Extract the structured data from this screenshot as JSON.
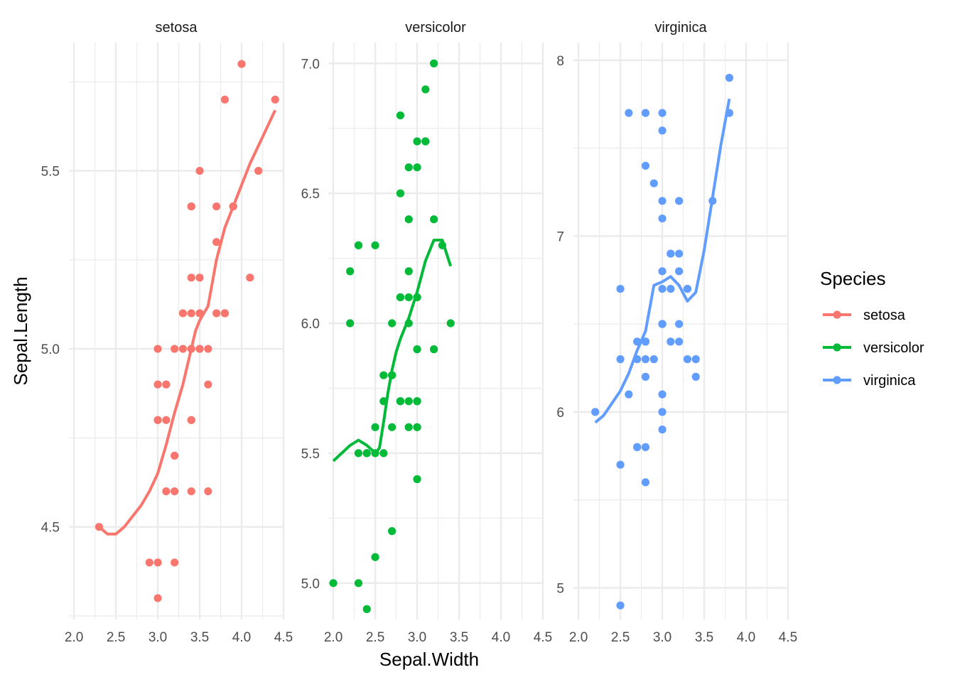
{
  "chart_data": {
    "type": "scatter",
    "xlabel": "Sepal.Width",
    "ylabel": "Sepal.Length",
    "legend": {
      "title": "Species",
      "position": "right"
    },
    "grid": true,
    "facets": [
      {
        "name": "setosa",
        "color": "#F8766D",
        "xlim": [
          1.94,
          4.5
        ],
        "ylim": [
          4.24,
          5.86
        ],
        "x_ticks": [
          "2.0",
          "2.5",
          "3.0",
          "3.5",
          "4.0",
          "4.5"
        ],
        "y_ticks": [
          "4.5",
          "5.0",
          "5.5"
        ],
        "points": [
          [
            3.5,
            5.1
          ],
          [
            3.0,
            4.9
          ],
          [
            3.2,
            4.7
          ],
          [
            3.1,
            4.6
          ],
          [
            3.6,
            5.0
          ],
          [
            3.9,
            5.4
          ],
          [
            3.4,
            4.6
          ],
          [
            3.4,
            5.0
          ],
          [
            2.9,
            4.4
          ],
          [
            3.1,
            4.9
          ],
          [
            3.7,
            5.4
          ],
          [
            3.4,
            4.8
          ],
          [
            3.0,
            4.8
          ],
          [
            3.0,
            4.3
          ],
          [
            4.0,
            5.8
          ],
          [
            4.4,
            5.7
          ],
          [
            3.9,
            5.4
          ],
          [
            3.5,
            5.1
          ],
          [
            3.8,
            5.7
          ],
          [
            3.8,
            5.1
          ],
          [
            3.4,
            5.4
          ],
          [
            3.7,
            5.1
          ],
          [
            3.6,
            4.6
          ],
          [
            3.3,
            5.1
          ],
          [
            3.4,
            4.8
          ],
          [
            3.0,
            5.0
          ],
          [
            3.4,
            5.0
          ],
          [
            3.5,
            5.2
          ],
          [
            3.4,
            5.2
          ],
          [
            3.2,
            4.7
          ],
          [
            3.1,
            4.8
          ],
          [
            3.4,
            5.4
          ],
          [
            4.1,
            5.2
          ],
          [
            4.2,
            5.5
          ],
          [
            3.1,
            4.9
          ],
          [
            3.2,
            5.0
          ],
          [
            3.5,
            5.5
          ],
          [
            3.6,
            4.9
          ],
          [
            3.0,
            4.4
          ],
          [
            3.4,
            5.1
          ],
          [
            3.5,
            5.0
          ],
          [
            2.3,
            4.5
          ],
          [
            3.2,
            4.4
          ],
          [
            3.5,
            5.0
          ],
          [
            3.8,
            5.1
          ],
          [
            3.0,
            4.8
          ],
          [
            3.8,
            5.1
          ],
          [
            3.2,
            4.6
          ],
          [
            3.7,
            5.3
          ],
          [
            3.3,
            5.0
          ]
        ],
        "smooth": [
          [
            2.3,
            4.5
          ],
          [
            2.4,
            4.48
          ],
          [
            2.5,
            4.48
          ],
          [
            2.6,
            4.5
          ],
          [
            2.7,
            4.53
          ],
          [
            2.8,
            4.56
          ],
          [
            2.9,
            4.6
          ],
          [
            3.0,
            4.65
          ],
          [
            3.1,
            4.73
          ],
          [
            3.2,
            4.82
          ],
          [
            3.3,
            4.9
          ],
          [
            3.4,
            5.0
          ],
          [
            3.45,
            5.05
          ],
          [
            3.5,
            5.08
          ],
          [
            3.6,
            5.12
          ],
          [
            3.7,
            5.25
          ],
          [
            3.8,
            5.34
          ],
          [
            3.9,
            5.4
          ],
          [
            4.0,
            5.46
          ],
          [
            4.1,
            5.52
          ],
          [
            4.2,
            5.57
          ],
          [
            4.3,
            5.62
          ],
          [
            4.4,
            5.67
          ]
        ]
      },
      {
        "name": "versicolor",
        "color": "#00BA38",
        "xlim": [
          1.94,
          4.5
        ],
        "ylim": [
          4.86,
          7.08
        ],
        "x_ticks": [
          "2.0",
          "2.5",
          "3.0",
          "3.5",
          "4.0",
          "4.5"
        ],
        "y_ticks": [
          "5.0",
          "5.5",
          "6.0",
          "6.5",
          "7.0"
        ],
        "points": [
          [
            3.2,
            7.0
          ],
          [
            3.2,
            6.4
          ],
          [
            3.1,
            6.9
          ],
          [
            2.3,
            5.5
          ],
          [
            2.8,
            6.5
          ],
          [
            2.8,
            5.7
          ],
          [
            3.3,
            6.3
          ],
          [
            2.4,
            4.9
          ],
          [
            2.9,
            6.6
          ],
          [
            2.7,
            5.2
          ],
          [
            2.0,
            5.0
          ],
          [
            3.0,
            5.9
          ],
          [
            2.2,
            6.0
          ],
          [
            2.9,
            6.1
          ],
          [
            2.9,
            5.6
          ],
          [
            3.1,
            6.7
          ],
          [
            3.0,
            5.6
          ],
          [
            2.7,
            5.8
          ],
          [
            2.2,
            6.2
          ],
          [
            2.5,
            5.6
          ],
          [
            3.2,
            5.9
          ],
          [
            2.8,
            6.1
          ],
          [
            2.5,
            6.3
          ],
          [
            2.8,
            6.1
          ],
          [
            2.9,
            6.4
          ],
          [
            3.0,
            6.6
          ],
          [
            2.8,
            6.8
          ],
          [
            3.0,
            6.7
          ],
          [
            2.9,
            6.0
          ],
          [
            2.6,
            5.7
          ],
          [
            2.4,
            5.5
          ],
          [
            2.4,
            5.5
          ],
          [
            2.7,
            5.8
          ],
          [
            2.7,
            6.0
          ],
          [
            3.0,
            5.4
          ],
          [
            3.4,
            6.0
          ],
          [
            3.1,
            6.7
          ],
          [
            2.3,
            6.3
          ],
          [
            3.0,
            5.6
          ],
          [
            2.5,
            5.5
          ],
          [
            2.6,
            5.5
          ],
          [
            3.0,
            6.1
          ],
          [
            2.6,
            5.8
          ],
          [
            2.3,
            5.0
          ],
          [
            2.7,
            5.6
          ],
          [
            3.0,
            5.7
          ],
          [
            2.9,
            5.7
          ],
          [
            2.9,
            6.2
          ],
          [
            2.5,
            5.1
          ],
          [
            2.8,
            5.7
          ],
          [
            2.3,
            6.3
          ],
          [
            3.0,
            6.1
          ],
          [
            3.0,
            5.7
          ]
        ],
        "smooth": [
          [
            2.0,
            5.47
          ],
          [
            2.1,
            5.5
          ],
          [
            2.2,
            5.53
          ],
          [
            2.3,
            5.55
          ],
          [
            2.4,
            5.53
          ],
          [
            2.5,
            5.5
          ],
          [
            2.55,
            5.52
          ],
          [
            2.6,
            5.62
          ],
          [
            2.65,
            5.73
          ],
          [
            2.7,
            5.82
          ],
          [
            2.75,
            5.89
          ],
          [
            2.8,
            5.94
          ],
          [
            2.9,
            6.02
          ],
          [
            3.0,
            6.12
          ],
          [
            3.1,
            6.24
          ],
          [
            3.2,
            6.32
          ],
          [
            3.3,
            6.32
          ],
          [
            3.4,
            6.22
          ]
        ]
      },
      {
        "name": "virginica",
        "color": "#619CFF",
        "xlim": [
          1.94,
          4.5
        ],
        "ylim": [
          4.82,
          8.1
        ],
        "x_ticks": [
          "2.0",
          "2.5",
          "3.0",
          "3.5",
          "4.0",
          "4.5"
        ],
        "y_ticks": [
          "5",
          "6",
          "7",
          "8"
        ],
        "points": [
          [
            3.3,
            6.3
          ],
          [
            2.7,
            5.8
          ],
          [
            3.0,
            7.1
          ],
          [
            2.9,
            6.3
          ],
          [
            3.0,
            6.5
          ],
          [
            3.0,
            7.6
          ],
          [
            2.5,
            4.9
          ],
          [
            2.9,
            7.3
          ],
          [
            2.5,
            6.7
          ],
          [
            3.6,
            7.2
          ],
          [
            3.2,
            6.5
          ],
          [
            2.7,
            6.4
          ],
          [
            3.0,
            6.8
          ],
          [
            2.5,
            5.7
          ],
          [
            2.8,
            5.8
          ],
          [
            3.2,
            6.4
          ],
          [
            3.0,
            6.5
          ],
          [
            3.8,
            7.7
          ],
          [
            2.6,
            7.7
          ],
          [
            2.2,
            6.0
          ],
          [
            3.2,
            6.9
          ],
          [
            2.8,
            5.6
          ],
          [
            2.8,
            7.7
          ],
          [
            2.7,
            6.3
          ],
          [
            3.3,
            6.7
          ],
          [
            3.2,
            7.2
          ],
          [
            2.8,
            6.2
          ],
          [
            3.0,
            6.1
          ],
          [
            2.8,
            6.4
          ],
          [
            3.0,
            7.2
          ],
          [
            2.8,
            7.4
          ],
          [
            3.8,
            7.9
          ],
          [
            2.8,
            6.4
          ],
          [
            2.8,
            6.3
          ],
          [
            2.6,
            6.1
          ],
          [
            3.0,
            7.7
          ],
          [
            3.4,
            6.3
          ],
          [
            3.1,
            6.4
          ],
          [
            3.0,
            6.0
          ],
          [
            3.1,
            6.9
          ],
          [
            3.1,
            6.7
          ],
          [
            3.1,
            6.9
          ],
          [
            2.7,
            5.8
          ],
          [
            3.2,
            6.8
          ],
          [
            3.3,
            6.7
          ],
          [
            3.0,
            6.7
          ],
          [
            2.5,
            6.3
          ],
          [
            3.0,
            6.5
          ],
          [
            3.4,
            6.2
          ],
          [
            3.0,
            5.9
          ]
        ],
        "smooth": [
          [
            2.2,
            5.94
          ],
          [
            2.3,
            5.98
          ],
          [
            2.4,
            6.05
          ],
          [
            2.5,
            6.12
          ],
          [
            2.6,
            6.22
          ],
          [
            2.7,
            6.35
          ],
          [
            2.8,
            6.46
          ],
          [
            2.9,
            6.72
          ],
          [
            3.0,
            6.74
          ],
          [
            3.1,
            6.77
          ],
          [
            3.2,
            6.72
          ],
          [
            3.3,
            6.63
          ],
          [
            3.4,
            6.68
          ],
          [
            3.5,
            6.92
          ],
          [
            3.6,
            7.22
          ],
          [
            3.7,
            7.52
          ],
          [
            3.8,
            7.78
          ]
        ]
      }
    ]
  }
}
